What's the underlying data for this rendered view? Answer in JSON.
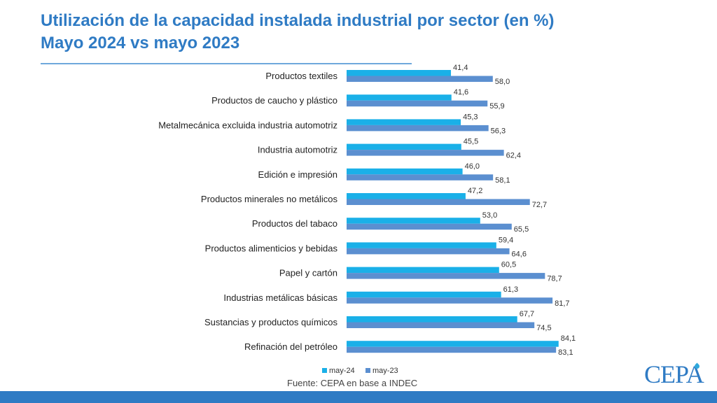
{
  "header": {
    "title_line1": "Utilización de la capacidad instalada industrial por sector (en %)",
    "title_line2": "Mayo 2024 vs mayo 2023"
  },
  "footer": {
    "source": "Fuente: CEPA en base a INDEC"
  },
  "logo": {
    "text": "CEPA"
  },
  "colors": {
    "may24": "#1ab0e8",
    "may23": "#5b8fd0",
    "title": "#2f7bc4"
  },
  "chart_data": {
    "type": "bar",
    "orientation": "horizontal",
    "categories": [
      "Productos textiles",
      "Productos de caucho y plástico",
      "Metalmecánica excluida industria automotriz",
      "Industria automotriz",
      "Edición e impresión",
      "Productos minerales no metálicos",
      "Productos del tabaco",
      "Productos alimenticios y bebidas",
      "Papel y cartón",
      "Industrias metálicas básicas",
      "Sustancias y productos químicos",
      "Refinación del petróleo"
    ],
    "series": [
      {
        "name": "may-24",
        "color": "#1ab0e8",
        "values": [
          41.4,
          41.6,
          45.3,
          45.5,
          46.0,
          47.2,
          53.0,
          59.4,
          60.5,
          61.3,
          67.7,
          84.1
        ],
        "labels": [
          "41,4",
          "41,6",
          "45,3",
          "45,5",
          "46,0",
          "47,2",
          "53,0",
          "59,4",
          "60,5",
          "61,3",
          "67,7",
          "84,1"
        ]
      },
      {
        "name": "may-23",
        "color": "#5b8fd0",
        "values": [
          58.0,
          55.9,
          56.3,
          62.4,
          58.1,
          72.7,
          65.5,
          64.6,
          78.7,
          81.7,
          74.5,
          83.1
        ],
        "labels": [
          "58,0",
          "55,9",
          "56,3",
          "62,4",
          "58,1",
          "72,7",
          "65,5",
          "64,6",
          "78,7",
          "81,7",
          "74,5",
          "83,1"
        ]
      }
    ],
    "xlim": [
      0,
      100
    ],
    "grid": false,
    "legend": "bottom"
  }
}
